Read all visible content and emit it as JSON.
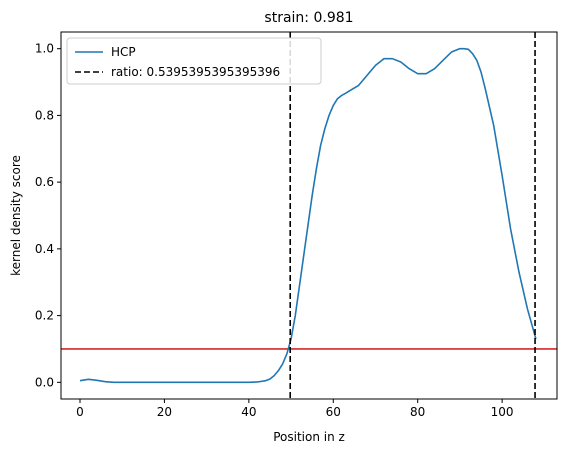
{
  "chart_data": {
    "type": "line",
    "title": "strain: 0.981",
    "xlabel": "Position in z",
    "ylabel": "kernel density score",
    "xlim": [
      -4.5,
      113.0
    ],
    "ylim": [
      -0.05,
      1.05
    ],
    "xticks": [
      0,
      20,
      40,
      60,
      80,
      100
    ],
    "yticks": [
      0.0,
      0.2,
      0.4,
      0.6,
      0.8,
      1.0
    ],
    "xtick_labels": [
      "0",
      "20",
      "40",
      "60",
      "80",
      "100"
    ],
    "ytick_labels": [
      "0.0",
      "0.2",
      "0.4",
      "0.6",
      "0.8",
      "1.0"
    ],
    "grid": false,
    "legend_position": "upper-left",
    "series": [
      {
        "name": "HCP",
        "color": "#1f77b4",
        "x": [
          0,
          2,
          4,
          6,
          8,
          10,
          15,
          20,
          25,
          30,
          35,
          40,
          42,
          44,
          45,
          46,
          47,
          48,
          49,
          50,
          51,
          52,
          53,
          54,
          55,
          56,
          57,
          58,
          59,
          60,
          61,
          62,
          63,
          64,
          66,
          68,
          70,
          72,
          74,
          76,
          78,
          80,
          82,
          84,
          86,
          88,
          90,
          91,
          92,
          93,
          94,
          95,
          96,
          98,
          100,
          102,
          104,
          106,
          108
        ],
        "y": [
          0.005,
          0.009,
          0.006,
          0.002,
          0.0,
          0.0,
          0.0,
          0.0,
          0.0,
          0.0,
          0.0,
          0.0,
          0.001,
          0.005,
          0.01,
          0.02,
          0.035,
          0.055,
          0.085,
          0.13,
          0.2,
          0.29,
          0.38,
          0.47,
          0.56,
          0.64,
          0.71,
          0.76,
          0.8,
          0.83,
          0.85,
          0.86,
          0.867,
          0.875,
          0.89,
          0.92,
          0.95,
          0.97,
          0.97,
          0.96,
          0.94,
          0.925,
          0.925,
          0.94,
          0.965,
          0.99,
          1.0,
          1.0,
          0.998,
          0.985,
          0.965,
          0.93,
          0.88,
          0.77,
          0.62,
          0.46,
          0.33,
          0.22,
          0.13
        ]
      }
    ],
    "vlines": [
      {
        "name": "ratio: 0.5395395395395396",
        "x": [
          49.8,
          107.8
        ],
        "color": "#000000",
        "style": "dashed"
      }
    ],
    "hlines": [
      {
        "y": 0.1,
        "color": "#d62728",
        "style": "solid"
      }
    ]
  }
}
